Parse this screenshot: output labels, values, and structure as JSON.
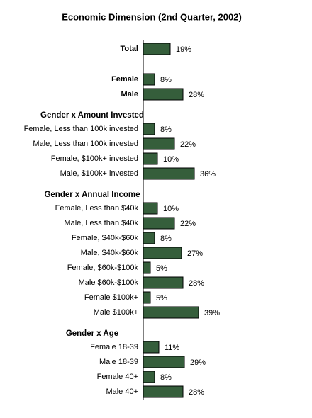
{
  "chart_data": {
    "type": "bar",
    "title": "Economic Dimension (2nd Quarter, 2002)",
    "color": "#355e3b",
    "xlim": [
      0,
      100
    ],
    "sections": [
      {
        "categories": [
          "Total"
        ],
        "values": [
          19
        ],
        "value_labels": [
          "19%"
        ]
      },
      {
        "categories": [
          "Female",
          "Male"
        ],
        "values": [
          8,
          28
        ],
        "value_labels": [
          "8%",
          "28%"
        ]
      },
      {
        "title": "Gender x Amount Invested",
        "categories": [
          "Female, Less than 100k invested",
          "Male, Less than 100k invested",
          "Female, $100k+ invested",
          "Male, $100k+ invested"
        ],
        "values": [
          8,
          22,
          10,
          36
        ],
        "value_labels": [
          "8%",
          "22%",
          "10%",
          "36%"
        ]
      },
      {
        "title": "Gender x Annual Income",
        "categories": [
          "Female, Less than $40k",
          "Male, Less than $40k",
          "Female, $40k-$60k",
          "Male, $40k-$60k",
          "Female, $60k-$100k",
          "Male $60k-$100k",
          "Female $100k+",
          "Male $100k+"
        ],
        "values": [
          10,
          22,
          8,
          27,
          5,
          28,
          5,
          39
        ],
        "value_labels": [
          "10%",
          "22%",
          "8%",
          "27%",
          "5%",
          "28%",
          "5%",
          "39%"
        ]
      },
      {
        "title": "Gender x Age",
        "categories": [
          "Female 18-39",
          "Male 18-39",
          "Female 40+",
          "Male 40+"
        ],
        "values": [
          11,
          29,
          8,
          28
        ],
        "value_labels": [
          "11%",
          "29%",
          "8%",
          "28%"
        ]
      }
    ]
  }
}
